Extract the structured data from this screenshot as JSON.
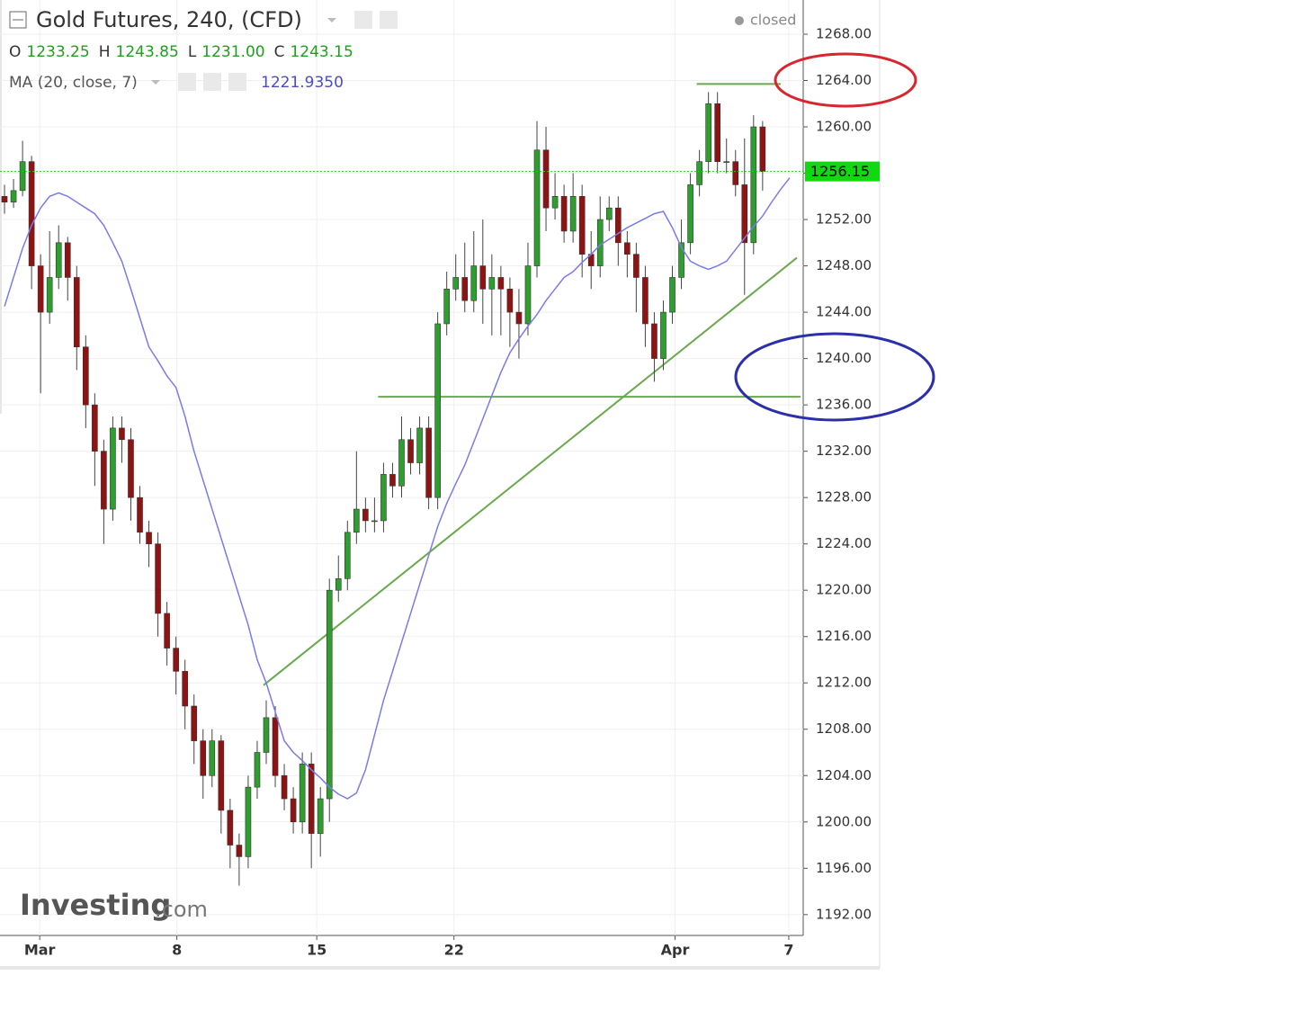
{
  "chart_data": {
    "type": "candlestick",
    "title": "Gold Futures, 240, (CFD)",
    "status": "closed",
    "legend_ohlc": [
      {
        "key": "O",
        "value": "1233.25"
      },
      {
        "key": "H",
        "value": "1243.85"
      },
      {
        "key": "L",
        "value": "1231.00"
      },
      {
        "key": "C",
        "value": "1243.15"
      }
    ],
    "indicator": {
      "name": "MA (20, close, 7)",
      "value": "1221.9350",
      "color": "#7b7be6",
      "values": [
        1244.5,
        1247,
        1249.5,
        1251.5,
        1253,
        1254,
        1254.3,
        1254,
        1253.5,
        1253,
        1252.5,
        1251.5,
        1250,
        1248.4,
        1246,
        1243.5,
        1241,
        1239.8,
        1238.5,
        1237.5,
        1235,
        1232,
        1229.5,
        1227,
        1224.5,
        1222,
        1219.5,
        1217,
        1214,
        1212,
        1209.5,
        1207,
        1206,
        1205.3,
        1204.5,
        1203.8,
        1203,
        1202.4,
        1202,
        1202.5,
        1204.5,
        1207.5,
        1210.5,
        1213,
        1215.5,
        1218,
        1220.5,
        1223,
        1225.5,
        1227.5,
        1229.2,
        1230.8,
        1232.8,
        1234.8,
        1236.8,
        1238.8,
        1240.5,
        1241.7,
        1242.8,
        1243.8,
        1245,
        1246,
        1247,
        1247.5,
        1248.3,
        1249,
        1249.8,
        1250.3,
        1250.8,
        1251.3,
        1251.7,
        1252.1,
        1252.5,
        1252.7,
        1251.3,
        1249.6,
        1248.4,
        1248,
        1247.7,
        1248,
        1248.4,
        1249.4,
        1250.4,
        1251.4,
        1252.3,
        1253.5,
        1254.6,
        1255.6
      ]
    },
    "ohlc": [
      [
        1254,
        1255,
        1252.5,
        1253.5
      ],
      [
        1253.5,
        1255.5,
        1253,
        1254.5
      ],
      [
        1254.5,
        1258.8,
        1254,
        1257
      ],
      [
        1257,
        1257.5,
        1246,
        1248
      ],
      [
        1248,
        1249,
        1237,
        1244
      ],
      [
        1244,
        1251,
        1243,
        1247
      ],
      [
        1247,
        1251.5,
        1246,
        1250
      ],
      [
        1250,
        1250.5,
        1245,
        1247
      ],
      [
        1247,
        1248,
        1239,
        1241
      ],
      [
        1241,
        1242,
        1234,
        1236
      ],
      [
        1236,
        1237,
        1229,
        1232
      ],
      [
        1232,
        1233,
        1224,
        1227
      ],
      [
        1227,
        1235,
        1226,
        1234
      ],
      [
        1234,
        1235,
        1231,
        1233
      ],
      [
        1233,
        1234,
        1226,
        1228
      ],
      [
        1228,
        1229,
        1224,
        1225
      ],
      [
        1225,
        1226,
        1222,
        1224
      ],
      [
        1224,
        1225,
        1216,
        1218
      ],
      [
        1218,
        1219,
        1213.5,
        1215
      ],
      [
        1215,
        1216,
        1211,
        1213
      ],
      [
        1213,
        1214,
        1208,
        1210
      ],
      [
        1210,
        1211,
        1205,
        1207
      ],
      [
        1207,
        1208,
        1202,
        1204
      ],
      [
        1204,
        1208,
        1203,
        1207
      ],
      [
        1207,
        1207.5,
        1199,
        1201
      ],
      [
        1201,
        1202,
        1196,
        1198
      ],
      [
        1198,
        1199,
        1194.5,
        1197
      ],
      [
        1197,
        1204,
        1196,
        1203
      ],
      [
        1203,
        1207,
        1202,
        1206
      ],
      [
        1206,
        1210.5,
        1205,
        1209
      ],
      [
        1209,
        1210,
        1203,
        1204
      ],
      [
        1204,
        1205,
        1201,
        1202
      ],
      [
        1202,
        1203,
        1199,
        1200
      ],
      [
        1200,
        1206,
        1199,
        1205
      ],
      [
        1205,
        1206,
        1196,
        1199
      ],
      [
        1199,
        1203,
        1197,
        1202
      ],
      [
        1202,
        1221,
        1200,
        1220
      ],
      [
        1220,
        1223,
        1219,
        1221
      ],
      [
        1221,
        1226,
        1220,
        1225
      ],
      [
        1225,
        1232,
        1224,
        1227
      ],
      [
        1227,
        1228,
        1225,
        1226
      ],
      [
        1226,
        1228,
        1225,
        1226
      ],
      [
        1226,
        1231,
        1225,
        1230
      ],
      [
        1230,
        1231,
        1228,
        1229
      ],
      [
        1229,
        1235,
        1228,
        1233
      ],
      [
        1233,
        1234,
        1230,
        1231
      ],
      [
        1231,
        1235,
        1230,
        1234
      ],
      [
        1234,
        1235,
        1227,
        1228
      ],
      [
        1228,
        1244,
        1227,
        1243
      ],
      [
        1243,
        1247.5,
        1242,
        1246
      ],
      [
        1246,
        1249,
        1245,
        1247
      ],
      [
        1247,
        1250,
        1244,
        1245
      ],
      [
        1245,
        1251,
        1244,
        1248
      ],
      [
        1248,
        1252,
        1243,
        1246
      ],
      [
        1246,
        1249,
        1242,
        1247
      ],
      [
        1247,
        1248,
        1242,
        1246
      ],
      [
        1246,
        1247,
        1241,
        1244
      ],
      [
        1244,
        1246,
        1240,
        1243
      ],
      [
        1243,
        1250,
        1242,
        1248
      ],
      [
        1248,
        1260.5,
        1247,
        1258
      ],
      [
        1258,
        1260,
        1251,
        1253
      ],
      [
        1253,
        1256,
        1252,
        1254
      ],
      [
        1254,
        1255,
        1250,
        1251
      ],
      [
        1251,
        1256,
        1250,
        1254
      ],
      [
        1254,
        1255,
        1247,
        1249
      ],
      [
        1249,
        1251,
        1246,
        1248
      ],
      [
        1248,
        1254,
        1247,
        1252
      ],
      [
        1252,
        1254,
        1251,
        1253
      ],
      [
        1253,
        1254,
        1248,
        1250
      ],
      [
        1250,
        1251,
        1247,
        1249
      ],
      [
        1249,
        1250,
        1244,
        1247
      ],
      [
        1247,
        1248,
        1241,
        1243
      ],
      [
        1243,
        1244,
        1238,
        1240
      ],
      [
        1240,
        1245,
        1239,
        1244
      ],
      [
        1244,
        1248,
        1243,
        1247
      ],
      [
        1247,
        1252,
        1246,
        1250
      ],
      [
        1250,
        1256,
        1249,
        1255
      ],
      [
        1255,
        1258,
        1254,
        1257
      ],
      [
        1257,
        1263,
        1256,
        1262
      ],
      [
        1262,
        1263,
        1256,
        1257
      ],
      [
        1257,
        1259,
        1256,
        1257
      ],
      [
        1257,
        1258,
        1254,
        1255
      ],
      [
        1255,
        1259,
        1245.5,
        1250
      ],
      [
        1250,
        1261,
        1249,
        1260
      ],
      [
        1260,
        1260.5,
        1254.5,
        1256.15
      ]
    ],
    "up_color": "#2e9e2e",
    "down_color": "#8e1414",
    "last_price": 1256.15,
    "last_price_color": "#12d812",
    "xlim": [
      0,
      89
    ],
    "xticks": [
      {
        "value": 4.4,
        "label": "Mar"
      },
      {
        "value": 19.6,
        "label": "8"
      },
      {
        "value": 35.1,
        "label": "15"
      },
      {
        "value": 50.3,
        "label": "22"
      },
      {
        "value": 74.8,
        "label": "Apr"
      },
      {
        "value": 87.4,
        "label": "7"
      }
    ],
    "ylim": [
      1190.2,
      1270.95
    ],
    "yticks": [
      {
        "value": 1192,
        "label": "1192.00"
      },
      {
        "value": 1196,
        "label": "1196.00"
      },
      {
        "value": 1200,
        "label": "1200.00"
      },
      {
        "value": 1204,
        "label": "1204.00"
      },
      {
        "value": 1208,
        "label": "1208.00"
      },
      {
        "value": 1212,
        "label": "1212.00"
      },
      {
        "value": 1216,
        "label": "1216.00"
      },
      {
        "value": 1220,
        "label": "1220.00"
      },
      {
        "value": 1224,
        "label": "1224.00"
      },
      {
        "value": 1228,
        "label": "1228.00"
      },
      {
        "value": 1232,
        "label": "1232.00"
      },
      {
        "value": 1236,
        "label": "1236.00"
      },
      {
        "value": 1240,
        "label": "1240.00"
      },
      {
        "value": 1244,
        "label": "1244.00"
      },
      {
        "value": 1248,
        "label": "1248.00"
      },
      {
        "value": 1252,
        "label": "1252.00"
      },
      {
        "value": 1256,
        "label": "1256.00"
      },
      {
        "value": 1260,
        "label": "1260.00"
      },
      {
        "value": 1264,
        "label": "1264.00"
      },
      {
        "value": 1268,
        "label": "1268.00"
      }
    ],
    "drawings": [
      {
        "x": [
          77.2,
          86.5
        ],
        "y": [
          1263.7,
          1263.7
        ]
      },
      {
        "x": [
          41.9,
          88.7
        ],
        "y": [
          1236.7,
          1236.7
        ]
      },
      {
        "x": [
          29.2,
          88.3
        ],
        "y": [
          1211.8,
          1248.7
        ]
      }
    ],
    "drawing_color": "#6aa84f",
    "grid": true,
    "watermark": {
      "brand": "Investing",
      "suffix": ".com"
    }
  }
}
